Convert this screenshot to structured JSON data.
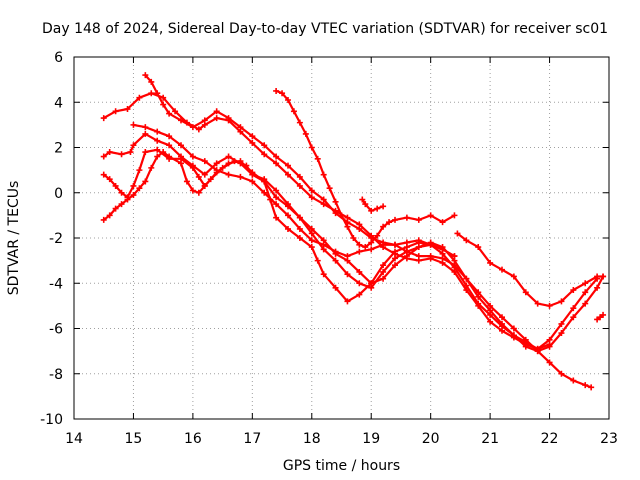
{
  "chart_data": {
    "type": "scatter",
    "title": "Day 148 of 2024, Sidereal Day-to-day VTEC variation (SDTVAR) for receiver sc01",
    "xlabel": "GPS time / hours",
    "ylabel": "SDTVAR / TECUs",
    "xlim": [
      14,
      23
    ],
    "ylim": [
      -10,
      6
    ],
    "xticks": [
      14,
      15,
      16,
      17,
      18,
      19,
      20,
      21,
      22,
      23
    ],
    "yticks": [
      -10,
      -8,
      -6,
      -4,
      -2,
      0,
      2,
      4,
      6
    ],
    "grid": true,
    "marker": "plus",
    "color": "#ff0000",
    "series": [
      {
        "name": "trace-1",
        "points": [
          [
            14.5,
            3.3
          ],
          [
            14.7,
            3.6
          ],
          [
            14.9,
            3.7
          ],
          [
            15.1,
            4.2
          ],
          [
            15.3,
            4.4
          ],
          [
            15.5,
            4.2
          ],
          [
            15.7,
            3.6
          ],
          [
            15.9,
            3.1
          ],
          [
            16.1,
            2.8
          ],
          [
            16.2,
            3.0
          ],
          [
            16.4,
            3.3
          ],
          [
            16.6,
            3.2
          ],
          [
            16.8,
            2.7
          ],
          [
            17.0,
            2.2
          ],
          [
            17.2,
            1.7
          ],
          [
            17.4,
            1.3
          ],
          [
            17.6,
            0.8
          ],
          [
            17.8,
            0.3
          ],
          [
            18.0,
            -0.2
          ],
          [
            18.2,
            -0.5
          ],
          [
            18.4,
            -0.8
          ],
          [
            18.6,
            -1.1
          ],
          [
            18.8,
            -1.4
          ],
          [
            19.0,
            -1.9
          ],
          [
            19.2,
            -2.4
          ],
          [
            19.4,
            -2.7
          ],
          [
            19.6,
            -2.9
          ],
          [
            19.8,
            -3.0
          ],
          [
            20.0,
            -2.9
          ],
          [
            20.2,
            -3.1
          ],
          [
            20.4,
            -3.5
          ],
          [
            20.6,
            -4.3
          ],
          [
            20.8,
            -5.0
          ],
          [
            21.0,
            -5.7
          ],
          [
            21.2,
            -6.1
          ],
          [
            21.4,
            -6.4
          ],
          [
            21.6,
            -6.7
          ],
          [
            21.8,
            -6.9
          ],
          [
            22.0,
            -6.5
          ],
          [
            22.2,
            -5.8
          ],
          [
            22.4,
            -5.1
          ],
          [
            22.6,
            -4.4
          ],
          [
            22.8,
            -3.8
          ]
        ]
      },
      {
        "name": "trace-2",
        "points": [
          [
            14.5,
            1.6
          ],
          [
            14.6,
            1.8
          ],
          [
            14.8,
            1.7
          ],
          [
            14.95,
            1.8
          ],
          [
            15.0,
            2.1
          ],
          [
            15.2,
            2.6
          ],
          [
            15.4,
            2.3
          ],
          [
            15.6,
            2.1
          ],
          [
            15.8,
            1.6
          ],
          [
            16.0,
            1.2
          ],
          [
            16.2,
            0.8
          ],
          [
            16.4,
            1.3
          ],
          [
            16.6,
            1.6
          ],
          [
            16.8,
            1.3
          ],
          [
            17.0,
            0.8
          ],
          [
            17.2,
            0.5
          ],
          [
            17.4,
            -0.2
          ],
          [
            17.6,
            -0.6
          ],
          [
            17.8,
            -1.1
          ],
          [
            18.0,
            -1.6
          ],
          [
            18.2,
            -2.1
          ],
          [
            18.4,
            -2.7
          ],
          [
            18.6,
            -3.0
          ],
          [
            18.8,
            -3.5
          ],
          [
            19.0,
            -4.0
          ],
          [
            19.2,
            -3.8
          ],
          [
            19.4,
            -3.2
          ],
          [
            19.6,
            -2.8
          ],
          [
            19.8,
            -2.4
          ],
          [
            20.0,
            -2.2
          ],
          [
            20.2,
            -2.4
          ],
          [
            20.4,
            -3.0
          ],
          [
            20.6,
            -3.8
          ],
          [
            20.8,
            -4.6
          ],
          [
            21.0,
            -5.2
          ],
          [
            21.2,
            -5.8
          ],
          [
            21.4,
            -6.3
          ],
          [
            21.6,
            -6.8
          ],
          [
            21.8,
            -7.0
          ],
          [
            22.0,
            -6.8
          ],
          [
            22.2,
            -6.2
          ],
          [
            22.4,
            -5.5
          ],
          [
            22.6,
            -4.9
          ],
          [
            22.8,
            -4.2
          ],
          [
            22.9,
            -3.7
          ]
        ]
      },
      {
        "name": "trace-3",
        "points": [
          [
            14.5,
            0.8
          ],
          [
            14.6,
            0.6
          ],
          [
            14.7,
            0.3
          ],
          [
            14.8,
            0.0
          ],
          [
            14.9,
            -0.2
          ],
          [
            15.0,
            0.3
          ],
          [
            15.1,
            1.0
          ],
          [
            15.2,
            1.8
          ],
          [
            15.4,
            1.9
          ],
          [
            15.6,
            1.5
          ],
          [
            15.8,
            1.5
          ],
          [
            16.0,
            1.1
          ],
          [
            16.1,
            0.7
          ],
          [
            16.2,
            0.3
          ],
          [
            16.3,
            0.6
          ],
          [
            16.5,
            1.1
          ],
          [
            16.7,
            1.4
          ],
          [
            16.9,
            1.2
          ],
          [
            17.0,
            0.8
          ],
          [
            17.2,
            0.6
          ],
          [
            17.4,
            0.1
          ],
          [
            17.6,
            -0.5
          ],
          [
            17.8,
            -1.1
          ],
          [
            18.0,
            -1.8
          ],
          [
            18.2,
            -2.5
          ],
          [
            18.4,
            -3.0
          ],
          [
            18.6,
            -3.6
          ],
          [
            18.8,
            -4.0
          ],
          [
            19.0,
            -4.2
          ],
          [
            19.2,
            -3.5
          ],
          [
            19.4,
            -2.9
          ],
          [
            19.6,
            -2.6
          ],
          [
            19.8,
            -2.4
          ],
          [
            20.0,
            -2.3
          ],
          [
            20.2,
            -2.7
          ],
          [
            20.4,
            -3.3
          ],
          [
            20.6,
            -4.1
          ],
          [
            20.8,
            -4.9
          ],
          [
            21.0,
            -5.4
          ],
          [
            21.2,
            -5.9
          ],
          [
            21.4,
            -6.3
          ],
          [
            21.6,
            -6.6
          ],
          [
            21.8,
            -6.9
          ],
          [
            22.0,
            -6.7
          ]
        ]
      },
      {
        "name": "trace-4",
        "points": [
          [
            14.5,
            -1.2
          ],
          [
            14.6,
            -1.0
          ],
          [
            14.7,
            -0.7
          ],
          [
            14.8,
            -0.5
          ],
          [
            14.9,
            -0.3
          ],
          [
            15.0,
            -0.1
          ],
          [
            15.1,
            0.2
          ],
          [
            15.2,
            0.5
          ],
          [
            15.3,
            1.1
          ],
          [
            15.4,
            1.6
          ],
          [
            15.5,
            1.8
          ],
          [
            15.6,
            1.6
          ],
          [
            15.8,
            1.3
          ],
          [
            15.9,
            0.5
          ],
          [
            16.0,
            0.1
          ],
          [
            16.1,
            0.0
          ],
          [
            16.2,
            0.3
          ],
          [
            16.4,
            0.9
          ],
          [
            16.6,
            1.3
          ],
          [
            16.8,
            1.4
          ],
          [
            17.0,
            0.9
          ],
          [
            17.2,
            0.5
          ],
          [
            17.3,
            -0.3
          ],
          [
            17.4,
            -1.1
          ],
          [
            17.6,
            -1.6
          ],
          [
            17.8,
            -2.0
          ],
          [
            18.0,
            -2.4
          ],
          [
            18.1,
            -3.0
          ],
          [
            18.2,
            -3.6
          ],
          [
            18.4,
            -4.2
          ],
          [
            18.6,
            -4.8
          ],
          [
            18.8,
            -4.5
          ],
          [
            19.0,
            -4.0
          ],
          [
            19.2,
            -3.2
          ],
          [
            19.4,
            -2.6
          ],
          [
            19.6,
            -2.4
          ],
          [
            19.8,
            -2.2
          ],
          [
            20.0,
            -2.3
          ],
          [
            20.2,
            -2.5
          ],
          [
            20.4,
            -2.8
          ]
        ]
      },
      {
        "name": "trace-5",
        "points": [
          [
            15.0,
            3.0
          ],
          [
            15.2,
            2.9
          ],
          [
            15.4,
            2.7
          ],
          [
            15.6,
            2.5
          ],
          [
            15.8,
            2.1
          ],
          [
            16.0,
            1.6
          ],
          [
            16.2,
            1.4
          ],
          [
            16.4,
            1.0
          ],
          [
            16.6,
            0.8
          ],
          [
            16.8,
            0.7
          ],
          [
            17.0,
            0.5
          ],
          [
            17.2,
            0.0
          ],
          [
            17.4,
            -0.5
          ],
          [
            17.6,
            -1.0
          ],
          [
            17.8,
            -1.6
          ],
          [
            18.0,
            -2.1
          ],
          [
            18.2,
            -2.3
          ],
          [
            18.4,
            -2.6
          ],
          [
            18.6,
            -2.8
          ],
          [
            18.8,
            -2.6
          ],
          [
            19.0,
            -2.5
          ],
          [
            19.2,
            -2.3
          ],
          [
            19.4,
            -2.3
          ],
          [
            19.6,
            -2.6
          ],
          [
            19.8,
            -2.8
          ],
          [
            20.0,
            -2.8
          ],
          [
            20.2,
            -2.9
          ],
          [
            20.4,
            -3.2
          ],
          [
            20.6,
            -3.8
          ],
          [
            20.8,
            -4.4
          ],
          [
            21.0,
            -5.0
          ],
          [
            21.2,
            -5.5
          ],
          [
            21.4,
            -6.0
          ],
          [
            21.6,
            -6.5
          ],
          [
            21.8,
            -7.0
          ],
          [
            22.0,
            -7.5
          ],
          [
            22.2,
            -8.0
          ],
          [
            22.4,
            -8.3
          ],
          [
            22.6,
            -8.5
          ],
          [
            22.7,
            -8.6
          ]
        ]
      },
      {
        "name": "trace-6",
        "points": [
          [
            15.2,
            5.2
          ],
          [
            15.3,
            4.9
          ],
          [
            15.4,
            4.4
          ],
          [
            15.5,
            3.9
          ],
          [
            15.6,
            3.5
          ],
          [
            15.8,
            3.2
          ],
          [
            16.0,
            2.9
          ],
          [
            16.2,
            3.2
          ],
          [
            16.4,
            3.6
          ],
          [
            16.6,
            3.3
          ],
          [
            16.8,
            2.9
          ],
          [
            17.0,
            2.5
          ],
          [
            17.2,
            2.1
          ],
          [
            17.4,
            1.6
          ],
          [
            17.6,
            1.2
          ],
          [
            17.8,
            0.7
          ],
          [
            18.0,
            0.1
          ],
          [
            18.2,
            -0.3
          ],
          [
            18.4,
            -0.9
          ],
          [
            18.6,
            -1.3
          ],
          [
            18.8,
            -1.6
          ],
          [
            19.0,
            -2.0
          ],
          [
            19.2,
            -2.2
          ],
          [
            19.4,
            -2.3
          ],
          [
            19.6,
            -2.2
          ],
          [
            19.8,
            -2.1
          ],
          [
            20.0,
            -2.3
          ],
          [
            20.2,
            -2.5
          ],
          [
            20.4,
            -2.8
          ]
        ]
      },
      {
        "name": "trace-7",
        "points": [
          [
            17.4,
            4.5
          ],
          [
            17.5,
            4.4
          ],
          [
            17.6,
            4.1
          ],
          [
            17.7,
            3.6
          ],
          [
            17.8,
            3.1
          ],
          [
            17.9,
            2.6
          ],
          [
            18.0,
            2.0
          ],
          [
            18.1,
            1.5
          ],
          [
            18.2,
            0.8
          ],
          [
            18.3,
            0.2
          ],
          [
            18.4,
            -0.4
          ],
          [
            18.5,
            -1.0
          ],
          [
            18.6,
            -1.5
          ],
          [
            18.7,
            -2.0
          ],
          [
            18.8,
            -2.3
          ],
          [
            18.9,
            -2.4
          ],
          [
            19.0,
            -2.2
          ],
          [
            19.1,
            -1.9
          ],
          [
            19.2,
            -1.5
          ],
          [
            19.3,
            -1.3
          ],
          [
            19.4,
            -1.2
          ],
          [
            19.6,
            -1.1
          ],
          [
            19.8,
            -1.2
          ],
          [
            20.0,
            -1.0
          ],
          [
            20.2,
            -1.3
          ],
          [
            20.4,
            -1.0
          ]
        ]
      },
      {
        "name": "trace-8",
        "points": [
          [
            18.85,
            -0.3
          ],
          [
            18.9,
            -0.5
          ],
          [
            19.0,
            -0.8
          ],
          [
            19.1,
            -0.7
          ],
          [
            19.2,
            -0.6
          ]
        ]
      },
      {
        "name": "trace-9",
        "points": [
          [
            20.45,
            -1.8
          ],
          [
            20.6,
            -2.1
          ],
          [
            20.8,
            -2.4
          ],
          [
            21.0,
            -3.1
          ],
          [
            21.2,
            -3.4
          ],
          [
            21.4,
            -3.7
          ],
          [
            21.6,
            -4.4
          ],
          [
            21.8,
            -4.9
          ],
          [
            22.0,
            -5.0
          ],
          [
            22.2,
            -4.8
          ],
          [
            22.4,
            -4.3
          ],
          [
            22.6,
            -4.0
          ],
          [
            22.8,
            -3.7
          ],
          [
            22.9,
            -3.7
          ]
        ]
      },
      {
        "name": "trace-10",
        "points": [
          [
            22.8,
            -5.6
          ],
          [
            22.85,
            -5.5
          ],
          [
            22.9,
            -5.4
          ]
        ]
      }
    ]
  }
}
